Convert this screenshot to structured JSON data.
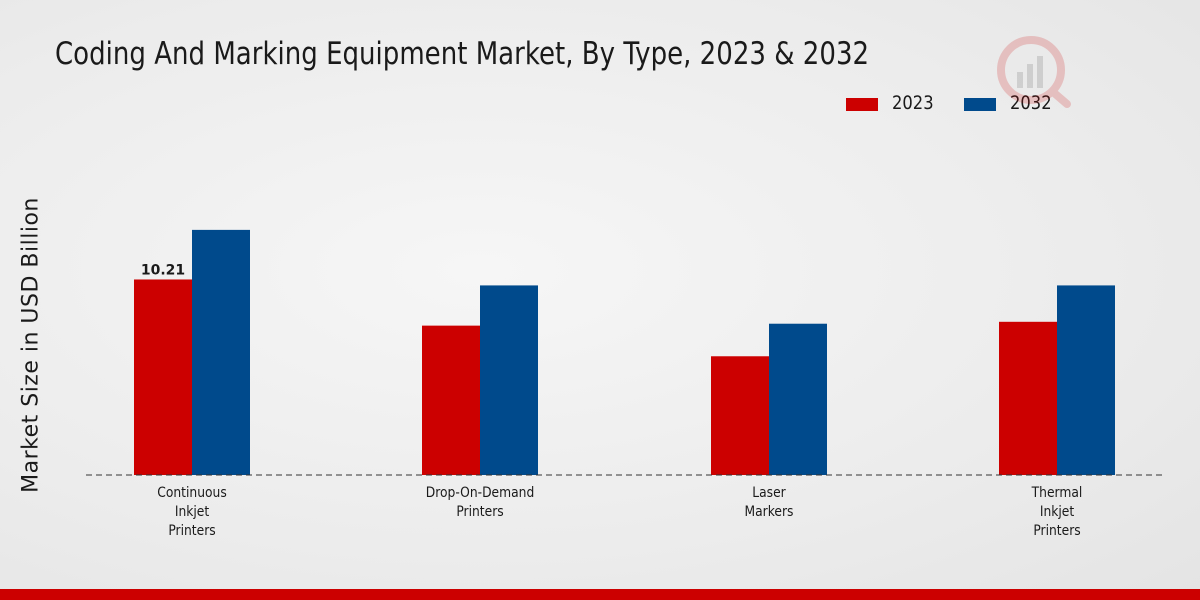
{
  "chart_data": {
    "type": "bar",
    "title": "Coding And Marking Equipment Market, By Type, 2023 & 2032",
    "xlabel": "",
    "ylabel": "Market Size in USD Billion",
    "categories": [
      [
        "Continuous",
        "Inkjet",
        "Printers"
      ],
      [
        "Drop-On-Demand",
        "Printers"
      ],
      [
        "Laser",
        "Markers"
      ],
      [
        "Thermal",
        "Inkjet",
        "Printers"
      ]
    ],
    "series": [
      {
        "name": "2023",
        "color": "#cc0000",
        "values": [
          10.21,
          7.8,
          6.2,
          8.0
        ]
      },
      {
        "name": "2032",
        "color": "#004a8c",
        "values": [
          12.8,
          9.9,
          7.9,
          9.9
        ]
      }
    ],
    "data_labels": [
      {
        "series": 0,
        "index": 0,
        "text": "10.21"
      }
    ],
    "ylim": [
      0,
      20
    ],
    "grid": false,
    "legend": "top-right"
  },
  "legend": {
    "items": [
      {
        "label": "2023",
        "color": "#cc0000"
      },
      {
        "label": "2032",
        "color": "#004a8c"
      }
    ]
  },
  "colors": {
    "footer_bar": "#cc0000",
    "axis": "#333333",
    "text": "#1a1a1a"
  }
}
